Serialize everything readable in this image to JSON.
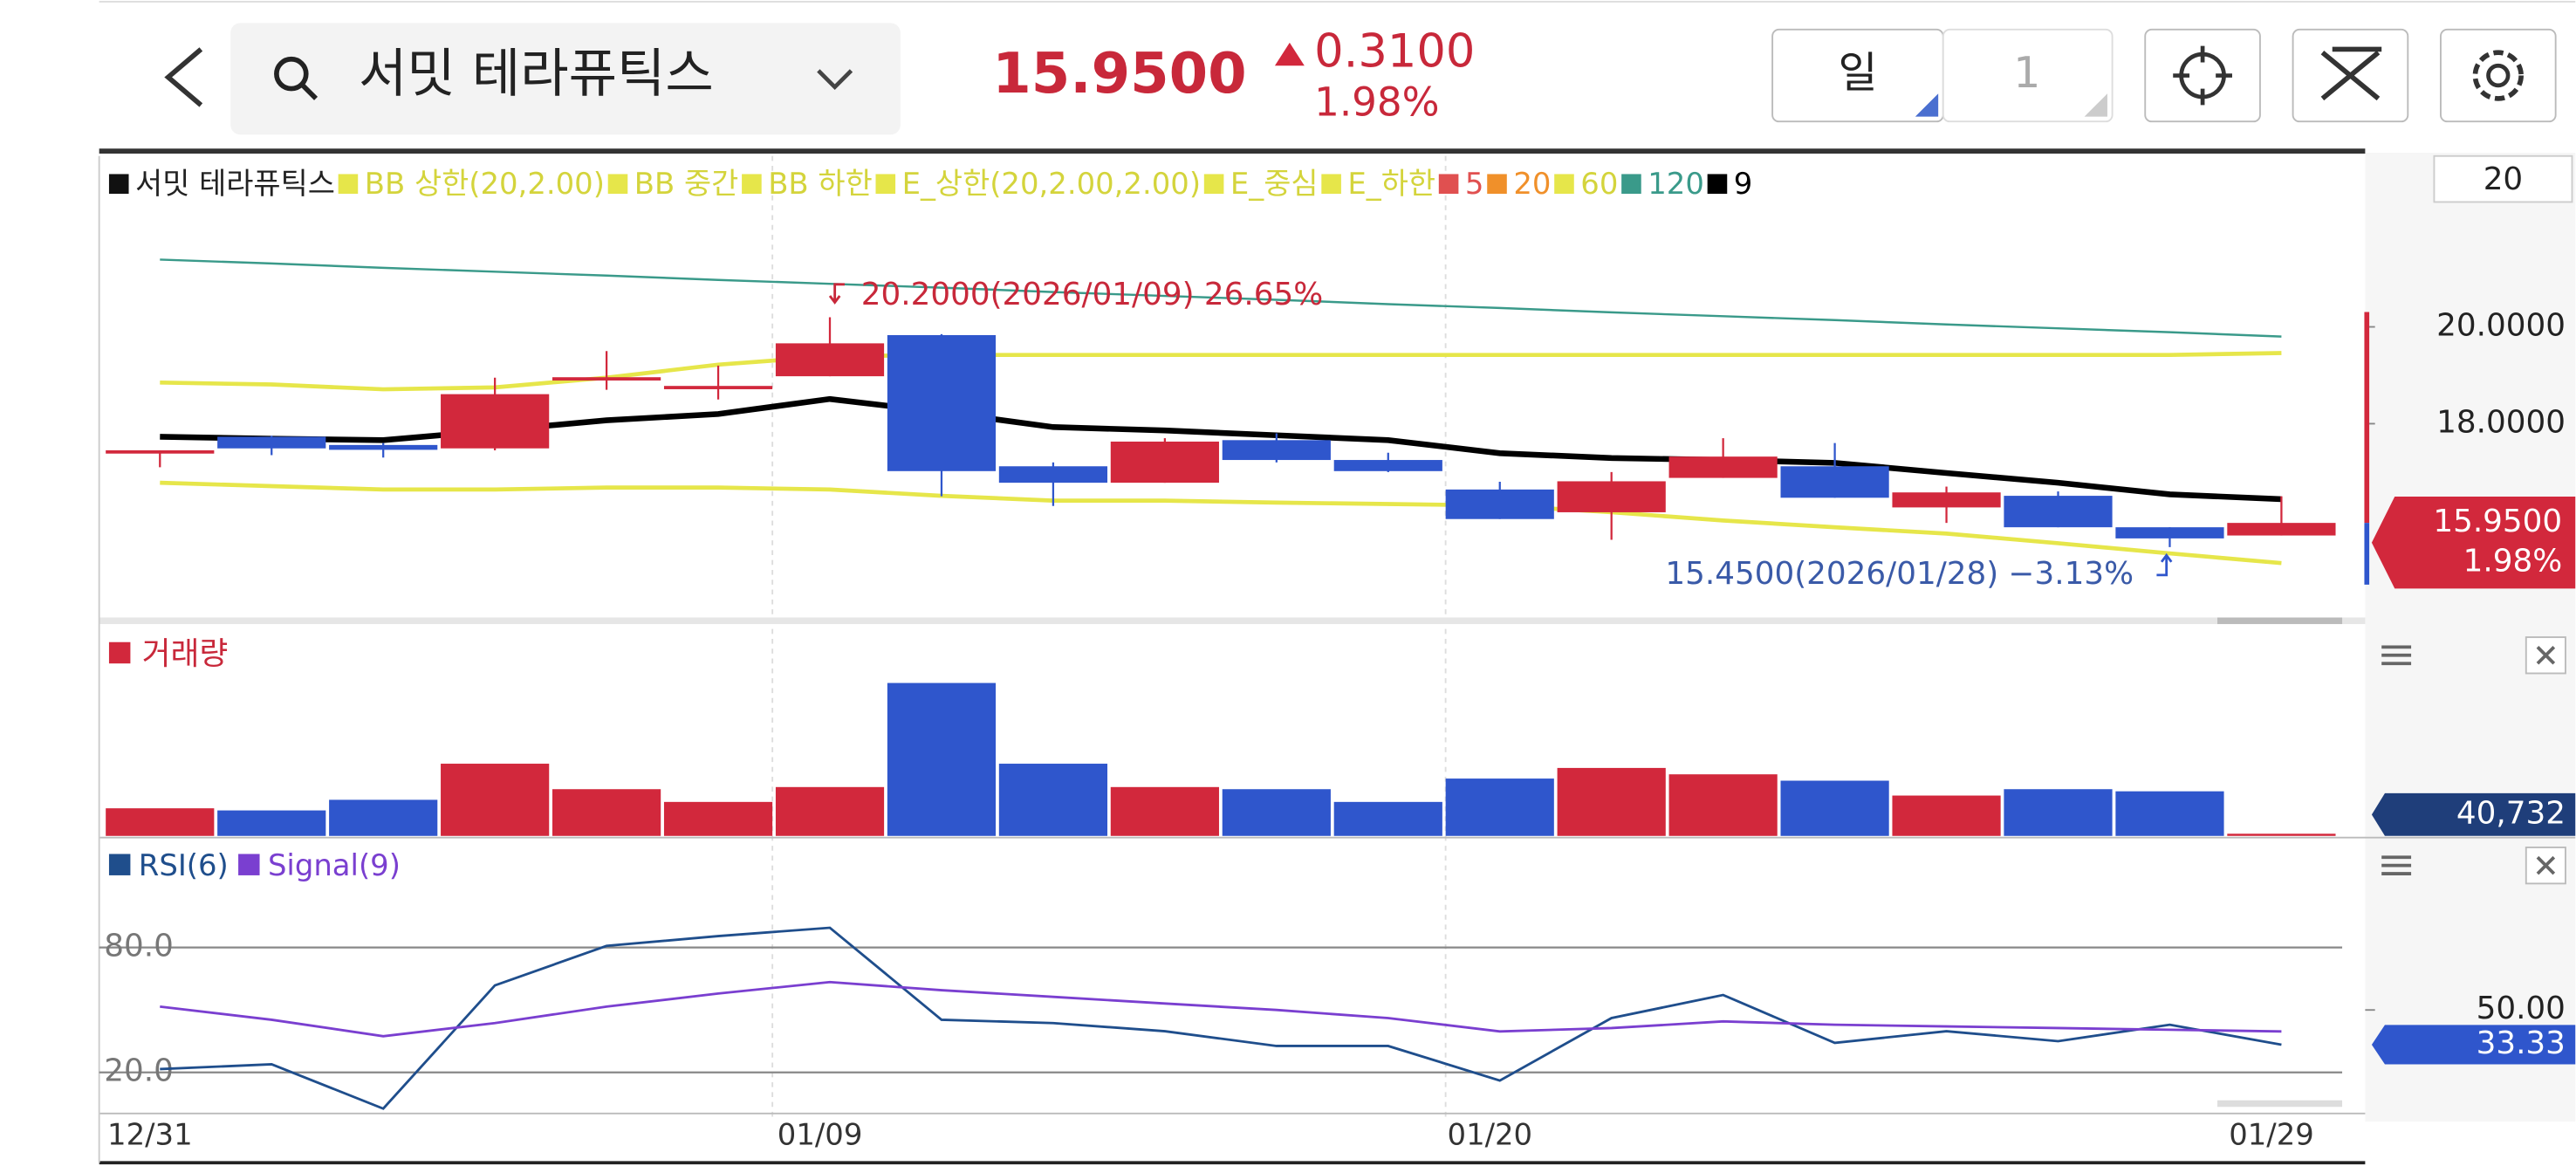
{
  "header": {
    "stock_name": "서밋 테라퓨틱스",
    "price": "15.9500",
    "change": "0.3100",
    "change_pct": "1.98%",
    "period": "일",
    "period_count": "1"
  },
  "chart_data": [
    {
      "type": "candlestick",
      "series": [
        {
          "name": "서밋 테라퓨틱스",
          "color": "#111111"
        },
        {
          "name": "BB 상한(20,2.00)",
          "color": "#e6e64a",
          "values": [
            18.85,
            18.81,
            18.71,
            18.75,
            18.95,
            19.22,
            19.39,
            19.42,
            19.42,
            19.42,
            19.42,
            19.42,
            19.42,
            19.42,
            19.42,
            19.42,
            19.42,
            19.42,
            19.42,
            19.46
          ]
        },
        {
          "name": "BB 중간",
          "color": "#e6e64a"
        },
        {
          "name": "BB 하한",
          "color": "#e6e64a",
          "values": [
            16.78,
            16.71,
            16.64,
            16.64,
            16.68,
            16.68,
            16.64,
            16.51,
            16.41,
            16.41,
            16.37,
            16.34,
            16.31,
            16.17,
            16.0,
            15.86,
            15.73,
            15.53,
            15.32,
            15.12
          ]
        },
        {
          "name": "E_상한(20,2.00,2.00)",
          "color": "#e6e64a"
        },
        {
          "name": "E_중심",
          "color": "#e6e64a"
        },
        {
          "name": "E_하한",
          "color": "#e6e64a"
        },
        {
          "name": "5",
          "color": "#e05050"
        },
        {
          "name": "20",
          "color": "#f0902a"
        },
        {
          "name": "60",
          "color": "#e6e64a"
        },
        {
          "name": "120",
          "color": "#3a9a8a",
          "values": [
            21.39,
            21.31,
            21.22,
            21.14,
            21.06,
            20.97,
            20.89,
            20.81,
            20.72,
            20.64,
            20.56,
            20.47,
            20.39,
            20.3,
            20.22,
            20.14,
            20.05,
            19.97,
            19.89,
            19.8
          ]
        },
        {
          "name": "9",
          "color": "#000000",
          "values": [
            17.73,
            17.69,
            17.66,
            17.86,
            18.07,
            18.2,
            18.51,
            18.24,
            17.93,
            17.86,
            17.76,
            17.66,
            17.39,
            17.29,
            17.25,
            17.19,
            16.98,
            16.78,
            16.54,
            16.44
          ]
        }
      ],
      "open": [
        17.4,
        17.73,
        17.56,
        17.49,
        18.92,
        18.72,
        18.98,
        19.83,
        17.12,
        16.78,
        17.66,
        17.25,
        16.64,
        16.17,
        16.88,
        17.12,
        16.27,
        16.51,
        15.86,
        15.69
      ],
      "high": [
        17.45,
        17.75,
        17.6,
        18.95,
        19.5,
        19.2,
        20.2,
        19.85,
        17.2,
        17.7,
        17.8,
        17.4,
        16.8,
        17.0,
        17.7,
        17.6,
        16.7,
        16.6,
        15.86,
        16.5
      ],
      "low": [
        17.1,
        17.35,
        17.3,
        17.45,
        18.7,
        18.5,
        18.98,
        16.5,
        16.3,
        16.78,
        17.2,
        17.0,
        16.03,
        15.6,
        16.88,
        16.47,
        15.95,
        15.86,
        15.45,
        15.69
      ],
      "close": [
        17.45,
        17.49,
        17.46,
        18.61,
        18.96,
        18.78,
        19.66,
        17.02,
        16.78,
        17.63,
        17.25,
        17.02,
        16.03,
        16.81,
        17.32,
        16.47,
        16.58,
        15.86,
        15.63,
        15.95
      ],
      "up_color": "#d2283c",
      "down_color": "#2f56cc",
      "ylim": [
        14.03,
        23.53
      ],
      "yticks": [
        {
          "value": 20,
          "label": "20.0000"
        },
        {
          "value": 18,
          "label": "18.0000"
        }
      ],
      "last_price": {
        "value": 15.95,
        "label": "15.9500"
      },
      "last_change": "1.98%",
      "period_input": "20",
      "high_annotation": "20.2000(2026/01/09) 26.65%",
      "low_annotation": "15.4500(2026/01/28) −3.13%"
    },
    {
      "type": "bar",
      "title": "거래량",
      "values": [
        520000,
        480000,
        680000,
        1360000,
        880000,
        640000,
        920000,
        2880000,
        1360000,
        920000,
        880000,
        640000,
        1080000,
        1280000,
        1160000,
        1040000,
        760000,
        880000,
        840000,
        40732
      ],
      "ylim": [
        0,
        3000000
      ],
      "last_value": {
        "value": 40732,
        "label": "40,732"
      }
    },
    {
      "type": "line",
      "categories": [
        "12/31",
        null,
        null,
        null,
        null,
        null,
        "01/09",
        null,
        null,
        null,
        null,
        null,
        "01/20",
        null,
        null,
        null,
        null,
        null,
        null,
        "01/29"
      ],
      "series": [
        {
          "name": "RSI(6)",
          "color": "#1f4e8c",
          "values": [
            21.6,
            23.9,
            2.6,
            61.8,
            80.8,
            85.5,
            89.5,
            45.3,
            43.7,
            39.8,
            32.7,
            32.7,
            16.1,
            46.1,
            57.2,
            34.2,
            39.8,
            35.0,
            42.9,
            33.33
          ]
        },
        {
          "name": "Signal(9)",
          "color": "#7a3fd0",
          "values": [
            51.6,
            45.3,
            37.4,
            43.7,
            51.6,
            57.9,
            63.4,
            59.5,
            56.3,
            53.1,
            50.0,
            46.1,
            39.7,
            41.3,
            44.5,
            42.9,
            42.1,
            41.3,
            40.5,
            39.7
          ]
        }
      ],
      "ylim": [
        -1.3,
        128.9
      ],
      "yticks": [
        {
          "value": 80,
          "label": "80.0"
        },
        {
          "value": 20,
          "label": "20.0"
        }
      ],
      "right_ticks": [
        {
          "value": 50,
          "label": "50.00"
        }
      ],
      "last_value": {
        "value": 33.33,
        "label": "33.33"
      }
    }
  ]
}
